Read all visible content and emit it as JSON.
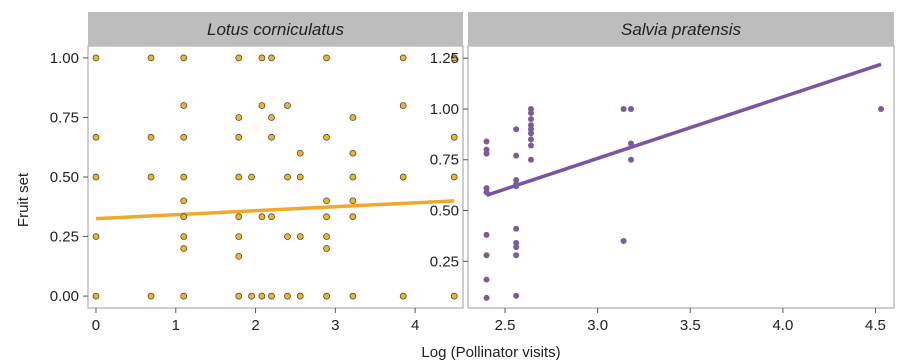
{
  "figure": {
    "ylabel": "Fruit set",
    "xlabel": "Log (Pollinator visits)"
  },
  "chart_data": [
    {
      "type": "scatter",
      "title": "Lotus corniculatus",
      "xlabel": "Log (Pollinator visits)",
      "ylabel": "Fruit set",
      "xlim": [
        -0.1,
        4.6
      ],
      "ylim": [
        -0.05,
        1.05
      ],
      "xticks": [
        0,
        1,
        2,
        3,
        4
      ],
      "yticks": [
        0.0,
        0.25,
        0.5,
        0.75,
        1.0
      ],
      "ytick_labels": [
        "0.00",
        "0.25",
        "0.50",
        "0.75",
        "1.00"
      ],
      "grid": false,
      "point_color": "#f0b429",
      "point_stroke": "#3a3a3a",
      "line_color": "#f0a92b",
      "points": [
        [
          0,
          1.0
        ],
        [
          0,
          0.667
        ],
        [
          0,
          0.5
        ],
        [
          0,
          0.25
        ],
        [
          0,
          0.0
        ],
        [
          0.69,
          1.0
        ],
        [
          0.69,
          0.667
        ],
        [
          0.69,
          0.5
        ],
        [
          0.69,
          0.0
        ],
        [
          1.1,
          1.0
        ],
        [
          1.1,
          0.8
        ],
        [
          1.1,
          0.667
        ],
        [
          1.1,
          0.5
        ],
        [
          1.1,
          0.4
        ],
        [
          1.1,
          0.333
        ],
        [
          1.1,
          0.25
        ],
        [
          1.1,
          0.2
        ],
        [
          1.1,
          0.0
        ],
        [
          1.79,
          1.0
        ],
        [
          1.79,
          0.75
        ],
        [
          1.79,
          0.667
        ],
        [
          1.79,
          0.5
        ],
        [
          1.79,
          0.333
        ],
        [
          1.79,
          0.25
        ],
        [
          1.79,
          0.167
        ],
        [
          1.79,
          0.0
        ],
        [
          1.95,
          0.5
        ],
        [
          1.95,
          0.0
        ],
        [
          2.08,
          1.0
        ],
        [
          2.08,
          0.8
        ],
        [
          2.08,
          0.333
        ],
        [
          2.08,
          0.0
        ],
        [
          2.2,
          1.0
        ],
        [
          2.2,
          0.75
        ],
        [
          2.2,
          0.667
        ],
        [
          2.2,
          0.333
        ],
        [
          2.2,
          0.0
        ],
        [
          2.4,
          0.8
        ],
        [
          2.4,
          0.5
        ],
        [
          2.4,
          0.25
        ],
        [
          2.4,
          0.0
        ],
        [
          2.56,
          0.6
        ],
        [
          2.56,
          0.5
        ],
        [
          2.56,
          0.25
        ],
        [
          2.56,
          0.0
        ],
        [
          2.89,
          1.0
        ],
        [
          2.89,
          0.667
        ],
        [
          2.89,
          0.4
        ],
        [
          2.89,
          0.333
        ],
        [
          2.89,
          0.25
        ],
        [
          2.89,
          0.2
        ],
        [
          2.89,
          0.0
        ],
        [
          3.22,
          0.75
        ],
        [
          3.22,
          0.6
        ],
        [
          3.22,
          0.5
        ],
        [
          3.22,
          0.4
        ],
        [
          3.22,
          0.333
        ],
        [
          3.22,
          0.0
        ],
        [
          3.85,
          1.0
        ],
        [
          3.85,
          0.8
        ],
        [
          3.85,
          0.5
        ],
        [
          3.85,
          0.0
        ],
        [
          4.49,
          1.0
        ],
        [
          4.49,
          0.667
        ],
        [
          4.49,
          0.5
        ],
        [
          4.49,
          0.0
        ]
      ],
      "fit_line": {
        "x": [
          0,
          4.49
        ],
        "y": [
          0.325,
          0.4
        ]
      }
    },
    {
      "type": "scatter",
      "title": "Salvia pratensis",
      "xlabel": "Log (Pollinator visits)",
      "ylabel": "",
      "xlim": [
        2.3,
        4.6
      ],
      "ylim": [
        0.02,
        1.31
      ],
      "xticks": [
        2.5,
        3.0,
        3.5,
        4.0,
        4.5
      ],
      "xtick_labels": [
        "2.5",
        "3.0",
        "3.5",
        "4.0",
        "4.5"
      ],
      "yticks": [
        0.25,
        0.5,
        0.75,
        1.0,
        1.25
      ],
      "ytick_labels": [
        "0.25",
        "0.50",
        "0.75",
        "1.00",
        "1.25"
      ],
      "grid": false,
      "point_color": "#7b5b9a",
      "line_color": "#7b55a3",
      "points": [
        [
          2.4,
          0.84
        ],
        [
          2.4,
          0.8
        ],
        [
          2.4,
          0.78
        ],
        [
          2.4,
          0.61
        ],
        [
          2.4,
          0.59
        ],
        [
          2.4,
          0.38
        ],
        [
          2.4,
          0.28
        ],
        [
          2.4,
          0.16
        ],
        [
          2.4,
          0.07
        ],
        [
          2.56,
          0.9
        ],
        [
          2.56,
          0.77
        ],
        [
          2.56,
          0.65
        ],
        [
          2.56,
          0.63
        ],
        [
          2.56,
          0.62
        ],
        [
          2.56,
          0.41
        ],
        [
          2.56,
          0.34
        ],
        [
          2.56,
          0.32
        ],
        [
          2.56,
          0.28
        ],
        [
          2.56,
          0.08
        ],
        [
          2.64,
          1.0
        ],
        [
          2.64,
          0.98
        ],
        [
          2.64,
          0.95
        ],
        [
          2.64,
          0.92
        ],
        [
          2.64,
          0.9
        ],
        [
          2.64,
          0.88
        ],
        [
          2.64,
          0.85
        ],
        [
          2.64,
          0.82
        ],
        [
          2.64,
          0.75
        ],
        [
          3.14,
          1.0
        ],
        [
          3.14,
          0.35
        ],
        [
          3.18,
          1.0
        ],
        [
          3.18,
          0.83
        ],
        [
          3.18,
          0.75
        ],
        [
          4.53,
          1.0
        ]
      ],
      "fit_line": {
        "x": [
          2.4,
          4.53
        ],
        "y": [
          0.575,
          1.22
        ]
      }
    }
  ]
}
